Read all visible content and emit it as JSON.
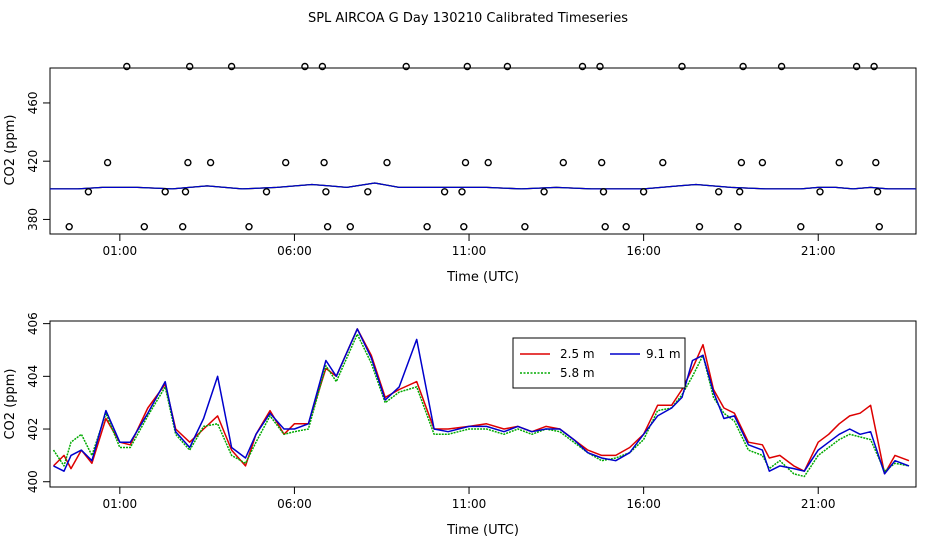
{
  "title": "SPL AIRCOA G  Day 130210  Calibrated Timeseries",
  "chart_data": [
    {
      "type": "scatter",
      "xlabel": "Time (UTC)",
      "ylabel": "CO2 (ppm)",
      "xlim": [
        -1.0,
        23.8
      ],
      "ylim": [
        370,
        484
      ],
      "xticks": [
        1,
        6,
        11,
        16,
        21
      ],
      "xticklabels": [
        "01:00",
        "06:00",
        "11:00",
        "16:00",
        "21:00"
      ],
      "yticks": [
        380,
        420,
        460
      ],
      "yticklabels": [
        "380",
        "420",
        "460"
      ],
      "points": [
        [
          -0.45,
          375
        ],
        [
          0.1,
          399
        ],
        [
          0.65,
          419
        ],
        [
          1.2,
          485
        ],
        [
          1.7,
          375
        ],
        [
          2.3,
          399
        ],
        [
          2.8,
          375
        ],
        [
          2.88,
          399
        ],
        [
          2.95,
          419
        ],
        [
          3.0,
          485
        ],
        [
          3.6,
          419
        ],
        [
          4.2,
          485
        ],
        [
          4.7,
          375
        ],
        [
          5.2,
          399
        ],
        [
          5.75,
          419
        ],
        [
          6.3,
          485
        ],
        [
          6.8,
          485
        ],
        [
          6.85,
          419
        ],
        [
          6.9,
          399
        ],
        [
          6.95,
          375
        ],
        [
          7.6,
          375
        ],
        [
          8.1,
          399
        ],
        [
          8.65,
          419
        ],
        [
          9.2,
          485
        ],
        [
          9.8,
          375
        ],
        [
          10.3,
          399
        ],
        [
          10.8,
          399
        ],
        [
          10.85,
          375
        ],
        [
          10.9,
          419
        ],
        [
          10.95,
          485
        ],
        [
          11.55,
          419
        ],
        [
          12.1,
          485
        ],
        [
          12.6,
          375
        ],
        [
          13.15,
          399
        ],
        [
          13.7,
          419
        ],
        [
          14.25,
          485
        ],
        [
          14.75,
          485
        ],
        [
          14.8,
          419
        ],
        [
          14.85,
          399
        ],
        [
          14.9,
          375
        ],
        [
          15.5,
          375
        ],
        [
          16.0,
          399
        ],
        [
          16.55,
          419
        ],
        [
          17.1,
          485
        ],
        [
          17.6,
          375
        ],
        [
          18.15,
          399
        ],
        [
          18.7,
          375
        ],
        [
          18.75,
          399
        ],
        [
          18.8,
          419
        ],
        [
          18.85,
          485
        ],
        [
          19.4,
          419
        ],
        [
          19.95,
          485
        ],
        [
          20.5,
          375
        ],
        [
          21.05,
          399
        ],
        [
          21.6,
          419
        ],
        [
          22.1,
          485
        ],
        [
          22.6,
          485
        ],
        [
          22.65,
          419
        ],
        [
          22.7,
          399
        ],
        [
          22.75,
          375
        ]
      ],
      "series": [
        {
          "color": "#dd0000",
          "x": [
            -1.0,
            -0.2,
            0.5,
            1.5,
            2.5,
            3.5,
            4.5,
            5.5,
            6.5,
            7.0,
            7.5,
            8.3,
            9.0,
            9.5,
            10.5,
            11.5,
            12.5,
            13.5,
            14.5,
            15.5,
            16.0,
            16.5,
            17.0,
            17.5,
            18.5,
            19.5,
            20.5,
            21.0,
            21.5,
            22.0,
            22.5,
            23.0,
            23.8
          ],
          "values": [
            401,
            401,
            402,
            402,
            401,
            403,
            401,
            402,
            404,
            403,
            402,
            405,
            402,
            402,
            402,
            402,
            401,
            402,
            401,
            401,
            401,
            402,
            403,
            404,
            402,
            401,
            401,
            402,
            402,
            401,
            402,
            401,
            401
          ]
        },
        {
          "color": "#00aa00",
          "x": [
            -1.0,
            -0.2,
            0.5,
            1.5,
            2.5,
            3.5,
            4.5,
            5.5,
            6.5,
            7.0,
            7.5,
            8.3,
            9.0,
            9.5,
            10.5,
            11.5,
            12.5,
            13.5,
            14.5,
            15.5,
            16.0,
            16.5,
            17.0,
            17.5,
            18.5,
            19.5,
            20.5,
            21.0,
            21.5,
            22.0,
            22.5,
            23.0,
            23.8
          ],
          "values": [
            401,
            401,
            402,
            402,
            401,
            403,
            401,
            402,
            404,
            403,
            402,
            405,
            402,
            402,
            402,
            402,
            401,
            402,
            401,
            401,
            401,
            402,
            403,
            404,
            402,
            401,
            401,
            402,
            402,
            401,
            402,
            401,
            401
          ]
        },
        {
          "color": "#0000cc",
          "x": [
            -1.0,
            -0.2,
            0.5,
            1.5,
            2.5,
            3.5,
            4.5,
            5.5,
            6.5,
            7.0,
            7.5,
            8.3,
            9.0,
            9.5,
            10.5,
            11.5,
            12.5,
            13.5,
            14.5,
            15.5,
            16.0,
            16.5,
            17.0,
            17.5,
            18.5,
            19.5,
            20.5,
            21.0,
            21.5,
            22.0,
            22.5,
            23.0,
            23.8
          ],
          "values": [
            401,
            401,
            402,
            402,
            401,
            403,
            401,
            402,
            404,
            403,
            402,
            405,
            402,
            402,
            402,
            402,
            401,
            402,
            401,
            401,
            401,
            402,
            403,
            404,
            402,
            401,
            401,
            402,
            402,
            401,
            402,
            401,
            401
          ]
        }
      ]
    },
    {
      "type": "line",
      "xlabel": "Time (UTC)",
      "ylabel": "CO2 (ppm)",
      "xlim": [
        -1.0,
        23.8
      ],
      "ylim": [
        399.8,
        406.1
      ],
      "xticks": [
        1,
        6,
        11,
        16,
        21
      ],
      "xticklabels": [
        "01:00",
        "06:00",
        "11:00",
        "16:00",
        "21:00"
      ],
      "yticks": [
        400,
        402,
        404,
        406
      ],
      "yticklabels": [
        "400",
        "402",
        "404",
        "406"
      ],
      "legend_position": "top-right",
      "series": [
        {
          "name": "2.5 m",
          "color": "#dd0000",
          "x": [
            -0.9,
            -0.6,
            -0.4,
            -0.1,
            0.2,
            0.6,
            1.0,
            1.3,
            1.8,
            2.3,
            2.6,
            3.0,
            3.4,
            3.8,
            4.2,
            4.6,
            4.9,
            5.3,
            5.7,
            6.0,
            6.4,
            6.9,
            7.2,
            7.8,
            8.2,
            8.6,
            9.0,
            9.5,
            10.0,
            10.4,
            11.0,
            11.5,
            12.0,
            12.4,
            12.8,
            13.2,
            13.6,
            14.0,
            14.4,
            14.8,
            15.2,
            15.6,
            16.0,
            16.4,
            16.8,
            17.1,
            17.4,
            17.7,
            18.0,
            18.3,
            18.6,
            19.0,
            19.4,
            19.6,
            19.9,
            20.3,
            20.6,
            21.0,
            21.3,
            21.6,
            21.9,
            22.2,
            22.5,
            22.9,
            23.2,
            23.6
          ],
          "values": [
            400.6,
            401.0,
            400.5,
            401.2,
            400.7,
            402.4,
            401.5,
            401.4,
            402.8,
            403.7,
            402.0,
            401.5,
            402.0,
            402.5,
            401.2,
            400.6,
            401.8,
            402.7,
            401.8,
            402.2,
            402.2,
            404.3,
            404.0,
            405.8,
            404.8,
            403.2,
            403.5,
            403.8,
            402.0,
            402.0,
            402.1,
            402.2,
            402.0,
            402.1,
            401.9,
            402.1,
            402.0,
            401.6,
            401.2,
            401.0,
            401.0,
            401.3,
            401.8,
            402.9,
            402.9,
            403.5,
            404.3,
            405.2,
            403.5,
            402.8,
            402.6,
            401.5,
            401.4,
            400.9,
            401.0,
            400.6,
            400.4,
            401.5,
            401.8,
            402.2,
            402.5,
            402.6,
            402.9,
            400.3,
            401.0,
            400.8
          ]
        },
        {
          "name": "5.8 m",
          "color": "#00aa00",
          "x": [
            -0.9,
            -0.6,
            -0.4,
            -0.1,
            0.2,
            0.6,
            1.0,
            1.3,
            1.8,
            2.3,
            2.6,
            3.0,
            3.4,
            3.8,
            4.2,
            4.6,
            4.9,
            5.3,
            5.7,
            6.0,
            6.4,
            6.9,
            7.2,
            7.8,
            8.2,
            8.6,
            9.0,
            9.5,
            10.0,
            10.4,
            11.0,
            11.5,
            12.0,
            12.4,
            12.8,
            13.2,
            13.6,
            14.0,
            14.4,
            14.8,
            15.2,
            15.6,
            16.0,
            16.4,
            16.8,
            17.1,
            17.4,
            17.7,
            18.0,
            18.3,
            18.6,
            19.0,
            19.4,
            19.6,
            19.9,
            20.3,
            20.6,
            21.0,
            21.3,
            21.6,
            21.9,
            22.2,
            22.5,
            22.9,
            23.2,
            23.6
          ],
          "values": [
            401.2,
            400.6,
            401.5,
            401.8,
            401.0,
            402.6,
            401.3,
            401.3,
            402.5,
            403.6,
            401.8,
            401.2,
            402.1,
            402.2,
            401.0,
            400.7,
            401.5,
            402.5,
            401.8,
            401.9,
            402.0,
            404.4,
            403.8,
            405.6,
            404.5,
            403.0,
            403.4,
            403.6,
            401.8,
            401.8,
            402.0,
            402.0,
            401.8,
            402.0,
            401.8,
            402.0,
            401.9,
            401.5,
            401.1,
            400.8,
            400.9,
            401.1,
            401.6,
            402.7,
            402.8,
            403.3,
            404.0,
            404.8,
            403.2,
            402.6,
            402.3,
            401.2,
            401.0,
            400.5,
            400.8,
            400.3,
            400.2,
            401.0,
            401.3,
            401.6,
            401.8,
            401.7,
            401.6,
            400.4,
            400.7,
            400.6
          ]
        },
        {
          "name": "9.1 m",
          "color": "#0000cc",
          "x": [
            -0.9,
            -0.6,
            -0.4,
            -0.1,
            0.2,
            0.6,
            1.0,
            1.3,
            1.8,
            2.3,
            2.6,
            3.0,
            3.4,
            3.8,
            4.2,
            4.6,
            4.9,
            5.3,
            5.7,
            6.0,
            6.4,
            6.9,
            7.2,
            7.8,
            8.2,
            8.6,
            9.0,
            9.5,
            10.0,
            10.4,
            11.0,
            11.5,
            12.0,
            12.4,
            12.8,
            13.2,
            13.6,
            14.0,
            14.4,
            14.8,
            15.2,
            15.6,
            16.0,
            16.4,
            16.8,
            17.1,
            17.4,
            17.7,
            18.0,
            18.3,
            18.6,
            19.0,
            19.4,
            19.6,
            19.9,
            20.3,
            20.6,
            21.0,
            21.3,
            21.6,
            21.9,
            22.2,
            22.5,
            22.9,
            23.2,
            23.6
          ],
          "values": [
            400.6,
            400.4,
            401.0,
            401.2,
            400.8,
            402.7,
            401.5,
            401.5,
            402.6,
            403.8,
            401.9,
            401.3,
            402.4,
            404.0,
            401.3,
            400.9,
            401.8,
            402.6,
            402.0,
            402.0,
            402.2,
            404.6,
            404.0,
            405.8,
            404.7,
            403.1,
            403.6,
            405.4,
            402.0,
            401.9,
            402.1,
            402.1,
            401.9,
            402.1,
            401.9,
            402.0,
            402.0,
            401.6,
            401.1,
            400.9,
            400.8,
            401.1,
            401.8,
            402.5,
            402.8,
            403.2,
            404.6,
            404.8,
            403.4,
            402.4,
            402.5,
            401.4,
            401.2,
            400.4,
            400.6,
            400.5,
            400.4,
            401.2,
            401.5,
            401.8,
            402.0,
            401.8,
            401.9,
            400.3,
            400.8,
            400.6
          ]
        }
      ]
    }
  ]
}
